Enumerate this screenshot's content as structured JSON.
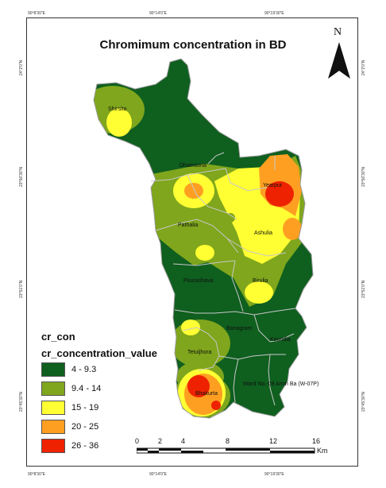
{
  "map": {
    "title": "Chromimum concentration in BD",
    "north_label": "N",
    "graticule": {
      "top": [
        "90°8'30\"E",
        "90°14'0\"E",
        "90°19'30\"E"
      ],
      "bottom": [
        "90°8'30\"E",
        "90°14'0\"E",
        "90°19'30\"E"
      ],
      "left": [
        "24°2'0\"N",
        "23°56'30\"N",
        "23°51'0\"N",
        "23°45'30\"N"
      ],
      "right": [
        "24°2'0\"N",
        "23°56'30\"N",
        "23°51'0\"N",
        "23°45'30\"N"
      ]
    },
    "places": [
      {
        "key": "shirsita",
        "label": "Shirsita"
      },
      {
        "key": "dhamsona",
        "label": "Dhamsona"
      },
      {
        "key": "yearpur",
        "label": "Yearpur"
      },
      {
        "key": "pathalia",
        "label": "Pathalia"
      },
      {
        "key": "ashulia",
        "label": "Ashulia"
      },
      {
        "key": "pourashava",
        "label": "Pourashava"
      },
      {
        "key": "birulia",
        "label": "Birulia"
      },
      {
        "key": "banagram",
        "label": "Banagram"
      },
      {
        "key": "kaundia",
        "label": "Kaundia"
      },
      {
        "key": "tetuljhora",
        "label": "Tetuljhora"
      },
      {
        "key": "bhakurta",
        "label": "Bhakurta"
      },
      {
        "key": "ward",
        "label": "Ward No.-09 Amin Ba (W-07P)"
      }
    ]
  },
  "legend": {
    "layer": "cr_con",
    "field": "cr_concentration_value",
    "classes": [
      {
        "label": "4 - 9.3",
        "color": "#0f5f1f"
      },
      {
        "label": "9.4 - 14",
        "color": "#7fa61c"
      },
      {
        "label": "15 - 19",
        "color": "#ffff33"
      },
      {
        "label": "20 - 25",
        "color": "#ff9f22"
      },
      {
        "label": "26 - 36",
        "color": "#ee2200"
      }
    ]
  },
  "scale": {
    "ticks": [
      "0",
      "2",
      "4",
      "8",
      "12",
      "16"
    ],
    "unit": "Km"
  }
}
